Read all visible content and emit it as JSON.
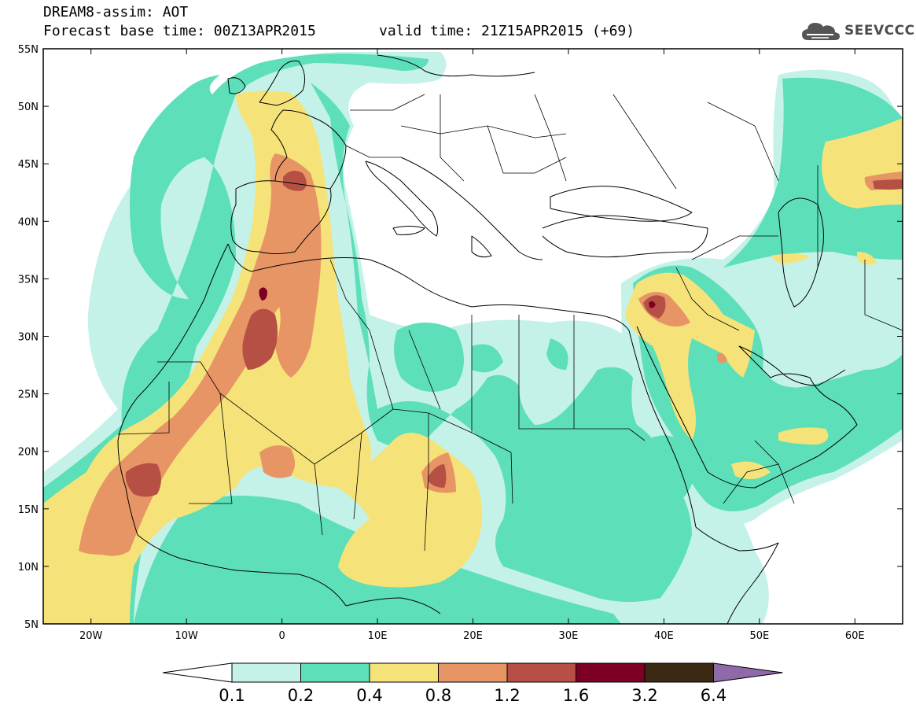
{
  "header": {
    "line1": "DREAM8-assim: AOT",
    "line2": "Forecast base time: 00Z13APR2015",
    "line3": "valid time: 21Z15APR2015 (+69)"
  },
  "logo": {
    "text": "SEEVCCC",
    "icon": "cloud-icon"
  },
  "axes": {
    "lon_min": -25,
    "lon_max": 65,
    "lat_min": 5,
    "lat_max": 55,
    "lat_ticks": [
      {
        "value": 55,
        "label": "55N"
      },
      {
        "value": 50,
        "label": "50N"
      },
      {
        "value": 45,
        "label": "45N"
      },
      {
        "value": 40,
        "label": "40N"
      },
      {
        "value": 35,
        "label": "35N"
      },
      {
        "value": 30,
        "label": "30N"
      },
      {
        "value": 25,
        "label": "25N"
      },
      {
        "value": 20,
        "label": "20N"
      },
      {
        "value": 15,
        "label": "15N"
      },
      {
        "value": 10,
        "label": "10N"
      },
      {
        "value": 5,
        "label": "5N"
      }
    ],
    "lon_ticks": [
      {
        "value": -20,
        "label": "20W"
      },
      {
        "value": -10,
        "label": "10W"
      },
      {
        "value": 0,
        "label": "0"
      },
      {
        "value": 10,
        "label": "10E"
      },
      {
        "value": 20,
        "label": "20E"
      },
      {
        "value": 30,
        "label": "30E"
      },
      {
        "value": 40,
        "label": "40E"
      },
      {
        "value": 50,
        "label": "50E"
      },
      {
        "value": 60,
        "label": "60E"
      }
    ]
  },
  "colorbar": {
    "colors": [
      "#c4f2e8",
      "#5ddfb9",
      "#f5e37a",
      "#e89566",
      "#b65045",
      "#7d0024",
      "#3c2914"
    ],
    "under_color": "#ffffff",
    "over_color": "#8e6aa9",
    "labels": [
      "0.1",
      "0.2",
      "0.4",
      "0.8",
      "1.2",
      "1.6",
      "3.2",
      "6.4"
    ]
  }
}
